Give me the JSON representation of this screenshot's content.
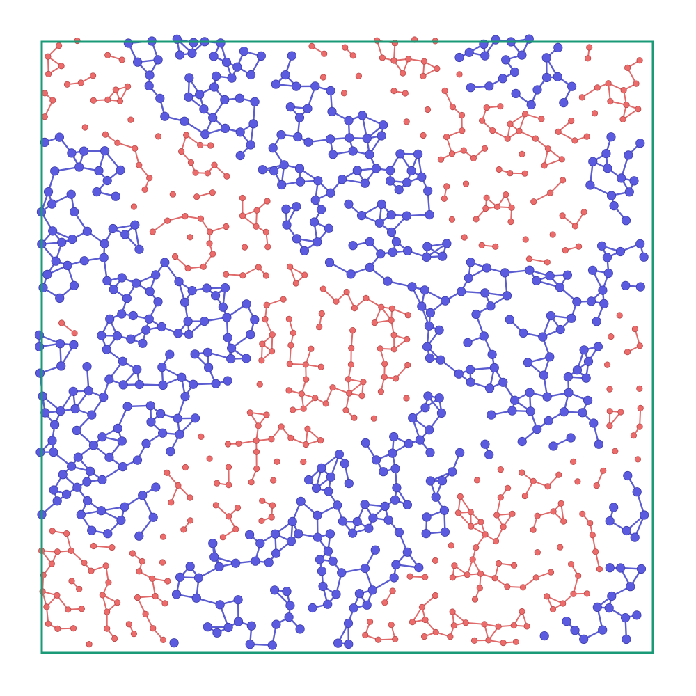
{
  "diagram": {
    "type": "network-simulation-snapshot",
    "boundary": "periodic-box",
    "species": [
      {
        "name": "blue",
        "color": "#5b5be0",
        "bond_color": "#5a5cd0"
      },
      {
        "name": "red",
        "color": "#ec6b6b",
        "bond_color": "#e06a6a"
      }
    ],
    "border_color": "#1a9a76",
    "background": "#ffffff"
  }
}
